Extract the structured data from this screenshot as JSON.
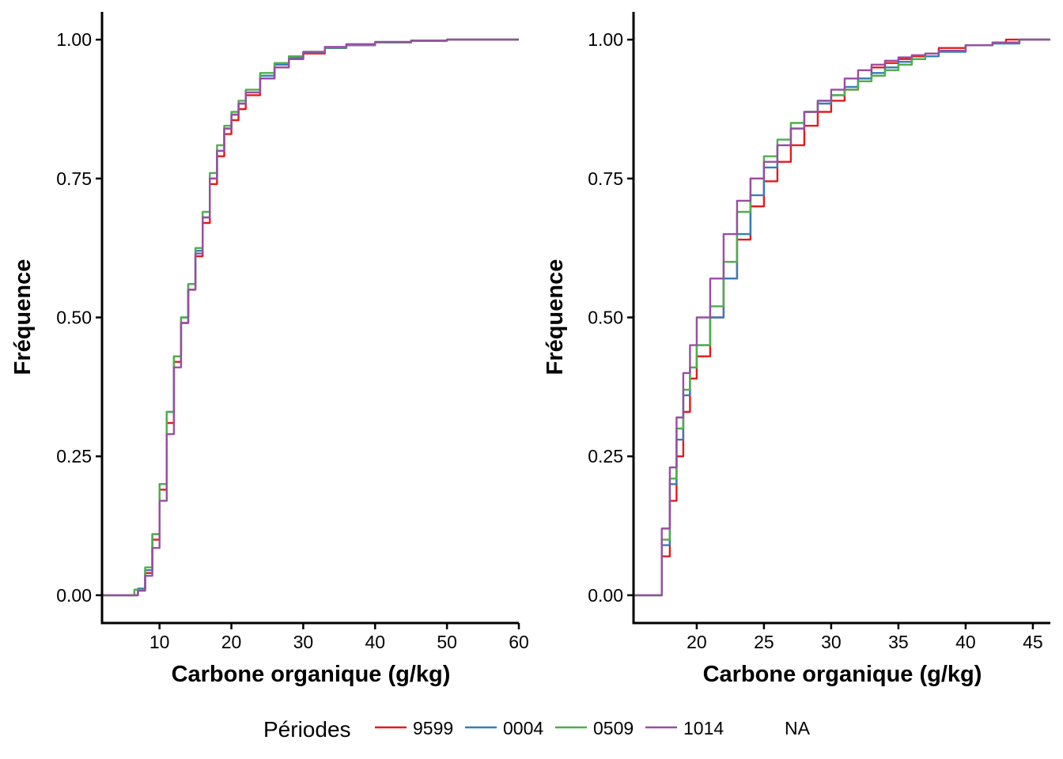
{
  "legend": {
    "title": "Périodes",
    "entries": [
      {
        "label": "9599",
        "color": "#E41A1C"
      },
      {
        "label": "0004",
        "color": "#377EB8"
      },
      {
        "label": "0509",
        "color": "#4DAF4A"
      },
      {
        "label": "1014",
        "color": "#984EA3"
      },
      {
        "label": "NA",
        "color": null
      }
    ]
  },
  "chart_data": [
    {
      "type": "line",
      "title": "",
      "xlabel": "Carbone organique (g/kg)",
      "ylabel": "Fréquence",
      "xlim": [
        2,
        60
      ],
      "ylim": [
        -0.05,
        1.05
      ],
      "xticks": [
        10,
        20,
        30,
        40,
        50,
        60
      ],
      "yticks": [
        0.0,
        0.25,
        0.5,
        0.75,
        1.0
      ],
      "ytick_labels": [
        "0.00",
        "0.25",
        "0.50",
        "0.75",
        "1.00"
      ],
      "grid": false,
      "legend_position": "bottom",
      "series": [
        {
          "name": "9599",
          "color": "#E41A1C",
          "points": [
            [
              2,
              0
            ],
            [
              5.5,
              0
            ],
            [
              7,
              0.01
            ],
            [
              8,
              0.04
            ],
            [
              9,
              0.1
            ],
            [
              10,
              0.19
            ],
            [
              11,
              0.31
            ],
            [
              12,
              0.42
            ],
            [
              13,
              0.49
            ],
            [
              14,
              0.55
            ],
            [
              15,
              0.61
            ],
            [
              16,
              0.67
            ],
            [
              17,
              0.74
            ],
            [
              18,
              0.79
            ],
            [
              19,
              0.83
            ],
            [
              20,
              0.855
            ],
            [
              21,
              0.875
            ],
            [
              22,
              0.9
            ],
            [
              24,
              0.93
            ],
            [
              26,
              0.95
            ],
            [
              28,
              0.965
            ],
            [
              30,
              0.975
            ],
            [
              33,
              0.985
            ],
            [
              36,
              0.99
            ],
            [
              40,
              0.995
            ],
            [
              45,
              0.998
            ],
            [
              50,
              1.0
            ],
            [
              60,
              1.0
            ]
          ]
        },
        {
          "name": "0004",
          "color": "#377EB8",
          "points": [
            [
              2,
              0
            ],
            [
              5.5,
              0
            ],
            [
              7,
              0.012
            ],
            [
              8,
              0.045
            ],
            [
              9,
              0.11
            ],
            [
              10,
              0.2
            ],
            [
              11,
              0.33
            ],
            [
              12,
              0.43
            ],
            [
              13,
              0.5
            ],
            [
              14,
              0.56
            ],
            [
              15,
              0.62
            ],
            [
              16,
              0.68
            ],
            [
              17,
              0.75
            ],
            [
              18,
              0.8
            ],
            [
              19,
              0.84
            ],
            [
              20,
              0.865
            ],
            [
              21,
              0.885
            ],
            [
              22,
              0.905
            ],
            [
              24,
              0.935
            ],
            [
              26,
              0.955
            ],
            [
              28,
              0.968
            ],
            [
              30,
              0.977
            ],
            [
              33,
              0.985
            ],
            [
              36,
              0.99
            ],
            [
              40,
              0.995
            ],
            [
              45,
              0.998
            ],
            [
              50,
              1.0
            ],
            [
              60,
              1.0
            ]
          ]
        },
        {
          "name": "0509",
          "color": "#4DAF4A",
          "points": [
            [
              2,
              0
            ],
            [
              5.5,
              0
            ],
            [
              6.5,
              0.01
            ],
            [
              8,
              0.05
            ],
            [
              9,
              0.11
            ],
            [
              10,
              0.2
            ],
            [
              11,
              0.33
            ],
            [
              12,
              0.43
            ],
            [
              13,
              0.5
            ],
            [
              14,
              0.56
            ],
            [
              15,
              0.625
            ],
            [
              16,
              0.69
            ],
            [
              17,
              0.76
            ],
            [
              18,
              0.81
            ],
            [
              19,
              0.845
            ],
            [
              20,
              0.87
            ],
            [
              21,
              0.89
            ],
            [
              22,
              0.91
            ],
            [
              24,
              0.94
            ],
            [
              26,
              0.958
            ],
            [
              28,
              0.97
            ],
            [
              30,
              0.978
            ],
            [
              33,
              0.986
            ],
            [
              36,
              0.991
            ],
            [
              40,
              0.995
            ],
            [
              45,
              0.998
            ],
            [
              50,
              1.0
            ],
            [
              60,
              1.0
            ]
          ]
        },
        {
          "name": "1014",
          "color": "#984EA3",
          "points": [
            [
              2,
              0
            ],
            [
              5.5,
              0
            ],
            [
              7,
              0.008
            ],
            [
              8,
              0.035
            ],
            [
              9,
              0.085
            ],
            [
              10,
              0.17
            ],
            [
              11,
              0.29
            ],
            [
              12,
              0.41
            ],
            [
              13,
              0.49
            ],
            [
              14,
              0.55
            ],
            [
              15,
              0.615
            ],
            [
              16,
              0.68
            ],
            [
              17,
              0.75
            ],
            [
              18,
              0.8
            ],
            [
              19,
              0.84
            ],
            [
              20,
              0.865
            ],
            [
              21,
              0.885
            ],
            [
              22,
              0.905
            ],
            [
              24,
              0.93
            ],
            [
              26,
              0.95
            ],
            [
              28,
              0.965
            ],
            [
              30,
              0.978
            ],
            [
              33,
              0.987
            ],
            [
              36,
              0.992
            ],
            [
              40,
              0.996
            ],
            [
              45,
              0.998
            ],
            [
              50,
              1.0
            ],
            [
              60,
              1.0
            ]
          ]
        }
      ]
    },
    {
      "type": "line",
      "title": "",
      "xlabel": "Carbone organique (g/kg)",
      "ylabel": "Fréquence",
      "xlim": [
        15.3,
        46.3
      ],
      "ylim": [
        -0.05,
        1.05
      ],
      "xticks": [
        20,
        25,
        30,
        35,
        40,
        45
      ],
      "yticks": [
        0.0,
        0.25,
        0.5,
        0.75,
        1.0
      ],
      "ytick_labels": [
        "0.00",
        "0.25",
        "0.50",
        "0.75",
        "1.00"
      ],
      "grid": false,
      "legend_position": "bottom",
      "series": [
        {
          "name": "9599",
          "color": "#E41A1C",
          "points": [
            [
              15.3,
              0
            ],
            [
              17.2,
              0
            ],
            [
              17.4,
              0.07
            ],
            [
              18,
              0.17
            ],
            [
              18.5,
              0.25
            ],
            [
              19,
              0.33
            ],
            [
              19.5,
              0.39
            ],
            [
              20,
              0.43
            ],
            [
              21,
              0.5
            ],
            [
              22,
              0.57
            ],
            [
              23,
              0.64
            ],
            [
              24,
              0.7
            ],
            [
              25,
              0.745
            ],
            [
              26,
              0.78
            ],
            [
              27,
              0.81
            ],
            [
              28,
              0.845
            ],
            [
              29,
              0.87
            ],
            [
              30,
              0.89
            ],
            [
              31,
              0.91
            ],
            [
              32,
              0.93
            ],
            [
              33,
              0.95
            ],
            [
              34,
              0.958
            ],
            [
              35,
              0.965
            ],
            [
              36,
              0.97
            ],
            [
              37,
              0.975
            ],
            [
              38,
              0.985
            ],
            [
              40,
              0.99
            ],
            [
              42,
              0.995
            ],
            [
              43,
              1.0
            ],
            [
              46.3,
              1.0
            ]
          ]
        },
        {
          "name": "0004",
          "color": "#377EB8",
          "points": [
            [
              15.3,
              0
            ],
            [
              17.2,
              0
            ],
            [
              17.4,
              0.09
            ],
            [
              18,
              0.2
            ],
            [
              18.5,
              0.28
            ],
            [
              19,
              0.36
            ],
            [
              19.5,
              0.41
            ],
            [
              20,
              0.45
            ],
            [
              21,
              0.5
            ],
            [
              22,
              0.57
            ],
            [
              23,
              0.65
            ],
            [
              24,
              0.72
            ],
            [
              25,
              0.77
            ],
            [
              26,
              0.81
            ],
            [
              27,
              0.84
            ],
            [
              28,
              0.87
            ],
            [
              29,
              0.885
            ],
            [
              30,
              0.9
            ],
            [
              31,
              0.915
            ],
            [
              32,
              0.93
            ],
            [
              33,
              0.94
            ],
            [
              34,
              0.95
            ],
            [
              35,
              0.96
            ],
            [
              36,
              0.965
            ],
            [
              37,
              0.97
            ],
            [
              38,
              0.978
            ],
            [
              40,
              0.99
            ],
            [
              42,
              0.993
            ],
            [
              44,
              1.0
            ],
            [
              46.3,
              1.0
            ]
          ]
        },
        {
          "name": "0509",
          "color": "#4DAF4A",
          "points": [
            [
              15.3,
              0
            ],
            [
              17.2,
              0
            ],
            [
              17.4,
              0.1
            ],
            [
              18,
              0.21
            ],
            [
              18.5,
              0.3
            ],
            [
              19,
              0.37
            ],
            [
              19.5,
              0.41
            ],
            [
              20,
              0.45
            ],
            [
              21,
              0.52
            ],
            [
              22,
              0.6
            ],
            [
              23,
              0.69
            ],
            [
              24,
              0.75
            ],
            [
              25,
              0.79
            ],
            [
              26,
              0.82
            ],
            [
              27,
              0.85
            ],
            [
              28,
              0.87
            ],
            [
              29,
              0.89
            ],
            [
              30,
              0.9
            ],
            [
              31,
              0.91
            ],
            [
              32,
              0.925
            ],
            [
              33,
              0.935
            ],
            [
              34,
              0.945
            ],
            [
              35,
              0.955
            ],
            [
              36,
              0.965
            ],
            [
              37,
              0.975
            ],
            [
              38,
              0.98
            ],
            [
              40,
              0.99
            ],
            [
              42,
              0.995
            ],
            [
              44,
              1.0
            ],
            [
              46.3,
              1.0
            ]
          ]
        },
        {
          "name": "1014",
          "color": "#984EA3",
          "points": [
            [
              15.3,
              0
            ],
            [
              17.2,
              0
            ],
            [
              17.4,
              0.12
            ],
            [
              18,
              0.23
            ],
            [
              18.5,
              0.32
            ],
            [
              19,
              0.4
            ],
            [
              19.5,
              0.45
            ],
            [
              20,
              0.5
            ],
            [
              21,
              0.57
            ],
            [
              22,
              0.65
            ],
            [
              23,
              0.71
            ],
            [
              24,
              0.75
            ],
            [
              25,
              0.78
            ],
            [
              26,
              0.81
            ],
            [
              27,
              0.84
            ],
            [
              28,
              0.87
            ],
            [
              29,
              0.89
            ],
            [
              30,
              0.91
            ],
            [
              31,
              0.93
            ],
            [
              32,
              0.945
            ],
            [
              33,
              0.955
            ],
            [
              34,
              0.962
            ],
            [
              35,
              0.968
            ],
            [
              36,
              0.972
            ],
            [
              37,
              0.975
            ],
            [
              38,
              0.98
            ],
            [
              40,
              0.99
            ],
            [
              42,
              0.995
            ],
            [
              44,
              1.0
            ],
            [
              46.3,
              1.0
            ]
          ]
        }
      ]
    }
  ]
}
